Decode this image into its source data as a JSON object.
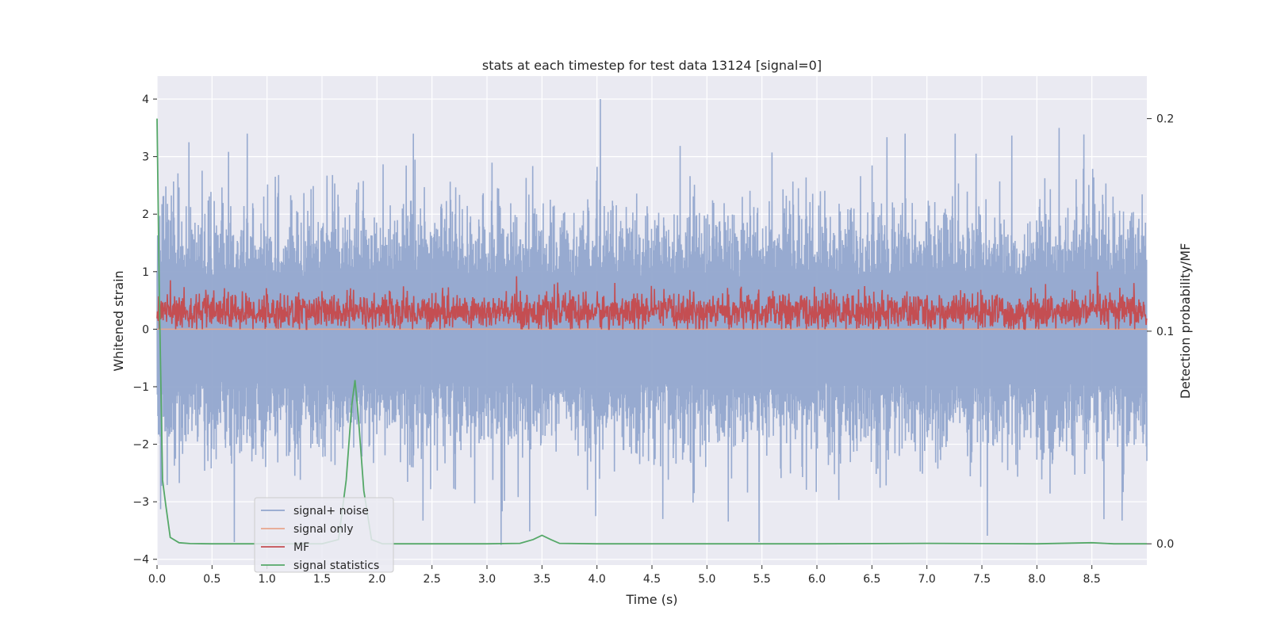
{
  "chart_data": {
    "type": "line",
    "title": "stats at each timestep for test data 13124 [signal=0]",
    "xlabel": "Time (s)",
    "ylabel": "Whitened strain",
    "y2label": "Detection probability/MF",
    "xlim": [
      0,
      9.0
    ],
    "ylim": [
      -4.1,
      4.4
    ],
    "y2lim": [
      -0.01,
      0.22
    ],
    "xticks": [
      "0.0",
      "0.5",
      "1.0",
      "1.5",
      "2.0",
      "2.5",
      "3.0",
      "3.5",
      "4.0",
      "4.5",
      "5.0",
      "5.5",
      "6.0",
      "6.5",
      "7.0",
      "7.5",
      "8.0",
      "8.5"
    ],
    "yticks": [
      "4",
      "3",
      "2",
      "1",
      "0",
      "−1",
      "−2",
      "−3",
      "−4"
    ],
    "y2ticks": [
      "0.2",
      "0.1",
      "0.0"
    ],
    "grid": true,
    "legend_position": "lower-left",
    "legend": [
      {
        "label": "signal+ noise",
        "color": "#92a6cd"
      },
      {
        "label": "signal only",
        "color": "#e8a68c"
      },
      {
        "label": "MF",
        "color": "#c44e52"
      },
      {
        "label": "signal statistics",
        "color": "#55a868"
      }
    ],
    "series": [
      {
        "name": "signal+ noise",
        "color": "#92a6cd",
        "axis": "left",
        "description": "dense noisy whitened strain, roughly within [-2.2, 2.2] with spikes up to ~4.0 and down to ~-3.7",
        "notable_points": [
          {
            "x": 0.29,
            "y": 3.25
          },
          {
            "x": 0.82,
            "y": 3.4
          },
          {
            "x": 4.03,
            "y": 4.0
          },
          {
            "x": 8.2,
            "y": 3.5
          },
          {
            "x": 3.13,
            "y": -3.75
          },
          {
            "x": 4.6,
            "y": -3.3
          }
        ]
      },
      {
        "name": "signal only",
        "color": "#e8a68c",
        "axis": "left",
        "description": "zero signal (flat at 0)",
        "x": [
          0,
          9.0
        ],
        "y": [
          0,
          0
        ]
      },
      {
        "name": "MF",
        "color": "#c44e52",
        "axis": "left",
        "description": "matched filter output, noisy band roughly between 0.0 and 0.7 with peaks near 1.0",
        "notable_points": [
          {
            "x": 3.27,
            "y": 0.92
          },
          {
            "x": 8.55,
            "y": 1.0
          }
        ]
      },
      {
        "name": "signal statistics",
        "color": "#55a868",
        "axis": "right",
        "x": [
          0.0,
          0.02,
          0.05,
          0.08,
          0.12,
          0.2,
          0.3,
          0.5,
          1.0,
          1.5,
          1.65,
          1.72,
          1.77,
          1.8,
          1.83,
          1.88,
          1.95,
          2.05,
          2.5,
          3.0,
          3.3,
          3.42,
          3.5,
          3.58,
          3.66,
          4.0,
          5.0,
          6.0,
          7.0,
          8.0,
          8.5,
          8.7,
          9.0
        ],
        "y": [
          0.2,
          0.12,
          0.03,
          0.018,
          0.003,
          0.0005,
          0.0001,
          0.0,
          0.0,
          0.0,
          0.002,
          0.03,
          0.065,
          0.077,
          0.06,
          0.025,
          0.002,
          0.0,
          0.0,
          0.0,
          0.0002,
          0.002,
          0.004,
          0.002,
          0.0002,
          0.0,
          0.0,
          0.0,
          0.0002,
          0.0,
          0.0005,
          0.0,
          0.0
        ]
      }
    ]
  }
}
